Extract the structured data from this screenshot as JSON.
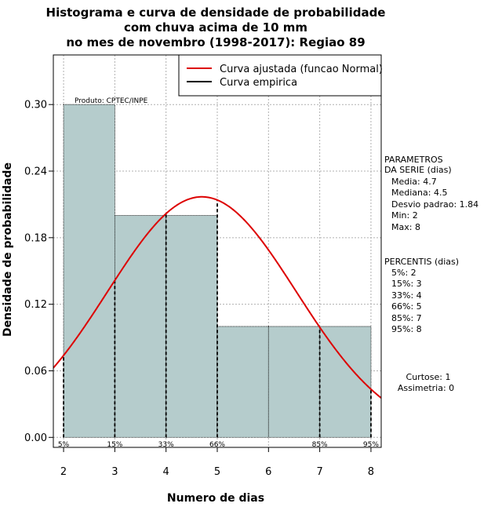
{
  "chart_data": {
    "type": "bar",
    "title": [
      "Histograma e curva de densidade de probabilidade",
      "com chuva acima de 10 mm",
      "no mes de novembro (1998-2017): Regiao 89"
    ],
    "xlabel": "Numero de dias",
    "ylabel": "Densidade de probabilidade",
    "xlim": [
      1.8,
      8.2
    ],
    "ylim": [
      -0.009,
      0.3447
    ],
    "x_ticks": [
      2,
      3,
      4,
      5,
      6,
      7,
      8
    ],
    "y_ticks": [
      0.0,
      0.06,
      0.12,
      0.18,
      0.24,
      0.3
    ],
    "y_tick_labels": [
      "0.00",
      "0.06",
      "0.12",
      "0.18",
      "0.24",
      "0.30"
    ],
    "histogram": {
      "bins": [
        [
          2,
          3
        ],
        [
          3,
          4
        ],
        [
          4,
          5
        ],
        [
          5,
          6
        ],
        [
          6,
          7
        ],
        [
          7,
          8
        ]
      ],
      "values": [
        0.3,
        0.2,
        0.2,
        0.1,
        0.1,
        0.1
      ],
      "fill": "#b5cccc"
    },
    "fitted_curve": {
      "name": "Curva ajustada (funcao Normal)",
      "mean": 4.7,
      "sd": 1.84,
      "color": "#dd0000"
    },
    "empirical_curve": {
      "name": "Curva empirica",
      "color": "#000000"
    },
    "percentile_markers": [
      {
        "x": 2,
        "label": "5%"
      },
      {
        "x": 3,
        "label": "15%"
      },
      {
        "x": 4,
        "label": "33%"
      },
      {
        "x": 5,
        "label": "66%"
      },
      {
        "x": 7,
        "label": "85%"
      },
      {
        "x": 8,
        "label": "95%"
      }
    ],
    "credit": "Produto: CPTEC/INPE",
    "parameters": {
      "heading": [
        "PARAMETROS",
        "DA SERIE (dias)"
      ],
      "lines": [
        "Media: 4.7",
        "Mediana: 4.5",
        "Desvio padrao: 1.84",
        "Min: 2",
        "Max: 8"
      ]
    },
    "percentiles": {
      "heading": "PERCENTIS (dias)",
      "lines": [
        "5%: 2",
        "15%: 3",
        "33%: 4",
        "66%: 5",
        "85%: 7",
        "95%: 8"
      ]
    },
    "shape": [
      "Curtose: 1",
      "Assimetria: 0"
    ]
  }
}
